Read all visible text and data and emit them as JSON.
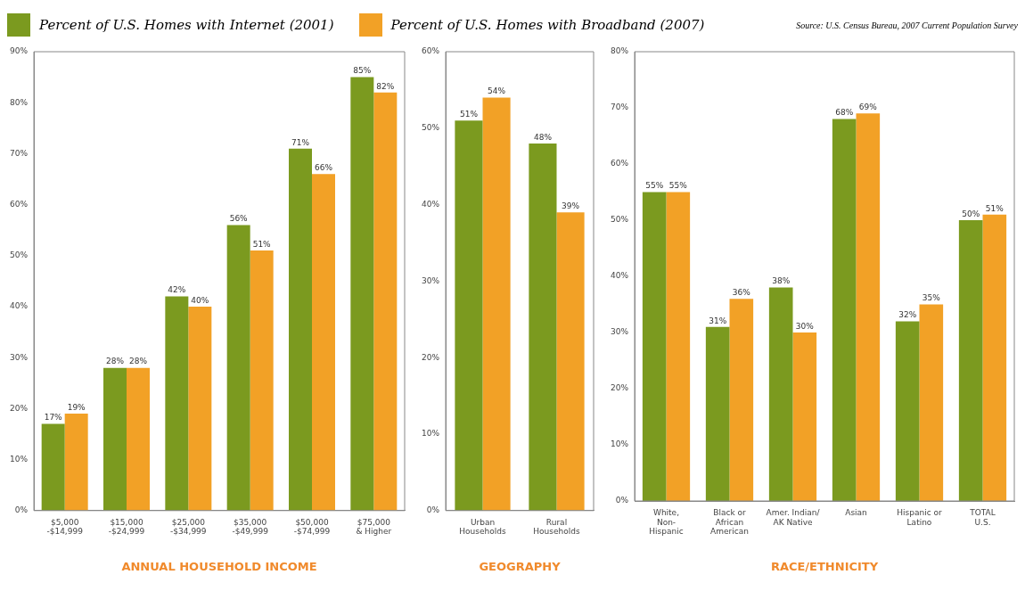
{
  "chart_data": [
    {
      "type": "bar",
      "xlabel": "ANNUAL HOUSEHOLD INCOME",
      "legend": "top",
      "categories": [
        "$5,000\n-$14,999",
        "$15,000\n-$24,999",
        "$25,000\n-$34,999",
        "$35,000\n-$49,999",
        "$50,000\n-$74,999",
        "$75,000\n& Higher"
      ],
      "series": [
        {
          "name": "Percent of U.S. Homes with Internet (2001)",
          "color": "#7b9a1f",
          "values": [
            17,
            28,
            42,
            56,
            71,
            85
          ],
          "value_labels": [
            "17%",
            "28%",
            "42%",
            "56%",
            "71%",
            "85%"
          ]
        },
        {
          "name": "Percent of U.S. Homes with Broadband (2007)",
          "color": "#f2a126",
          "values": [
            19,
            28,
            40,
            51,
            66,
            82
          ],
          "value_labels": [
            "19%",
            "28%",
            "40%",
            "51%",
            "66%",
            "82%"
          ]
        }
      ],
      "ylim": [
        0,
        90
      ],
      "yticks": [
        {
          "value": 0,
          "label": "0%"
        },
        {
          "value": 10,
          "label": "10%"
        },
        {
          "value": 20,
          "label": "20%"
        },
        {
          "value": 30,
          "label": "30%"
        },
        {
          "value": 40,
          "label": "40%"
        },
        {
          "value": 50,
          "label": "50%"
        },
        {
          "value": 60,
          "label": "60%"
        },
        {
          "value": 70,
          "label": "70%"
        },
        {
          "value": 80,
          "label": "80%"
        },
        {
          "value": 90,
          "label": "90%"
        }
      ],
      "grid": false
    },
    {
      "type": "bar",
      "xlabel": "GEOGRAPHY",
      "categories": [
        "Urban\nHouseholds",
        "Rural\nHouseholds"
      ],
      "series": [
        {
          "color": "#7b9a1f",
          "values": [
            51,
            48
          ],
          "value_labels": [
            "51%",
            "48%"
          ]
        },
        {
          "color": "#f2a126",
          "values": [
            54,
            39
          ],
          "value_labels": [
            "54%",
            "39%"
          ]
        }
      ],
      "ylim": [
        0,
        60
      ],
      "yticks": [
        {
          "value": 0,
          "label": "0%"
        },
        {
          "value": 10,
          "label": "10%"
        },
        {
          "value": 20,
          "label": "20%"
        },
        {
          "value": 30,
          "label": "30%"
        },
        {
          "value": 40,
          "label": "40%"
        },
        {
          "value": 50,
          "label": "50%"
        },
        {
          "value": 60,
          "label": "60%"
        }
      ],
      "grid": false
    },
    {
      "type": "bar",
      "xlabel": "RACE/ETHNICITY",
      "annotations": [
        "Source: U.S. Census Bureau, 2007 Current Population Survey"
      ],
      "categories": [
        "White,\nNon-\nHispanic",
        "Black or\nAfrican\nAmerican",
        "Amer. Indian/\nAK Native",
        "Asian",
        "Hispanic or\nLatino",
        "TOTAL\nU.S."
      ],
      "series": [
        {
          "color": "#7b9a1f",
          "values": [
            55,
            31,
            38,
            68,
            32,
            50
          ],
          "value_labels": [
            "55%",
            "31%",
            "38%",
            "68%",
            "32%",
            "50%"
          ]
        },
        {
          "color": "#f2a126",
          "values": [
            55,
            36,
            30,
            69,
            35,
            51
          ],
          "value_labels": [
            "55%",
            "36%",
            "30%",
            "69%",
            "35%",
            "51%"
          ]
        }
      ],
      "ylim": [
        0,
        80
      ],
      "yticks": [
        {
          "value": 0,
          "label": "0%"
        },
        {
          "value": 10,
          "label": "10%"
        },
        {
          "value": 20,
          "label": "20%"
        },
        {
          "value": 30,
          "label": "30%"
        },
        {
          "value": 40,
          "label": "40%"
        },
        {
          "value": 50,
          "label": "50%"
        },
        {
          "value": 60,
          "label": "60%"
        },
        {
          "value": 70,
          "label": "70%"
        },
        {
          "value": 80,
          "label": "80%"
        }
      ],
      "grid": false
    }
  ]
}
